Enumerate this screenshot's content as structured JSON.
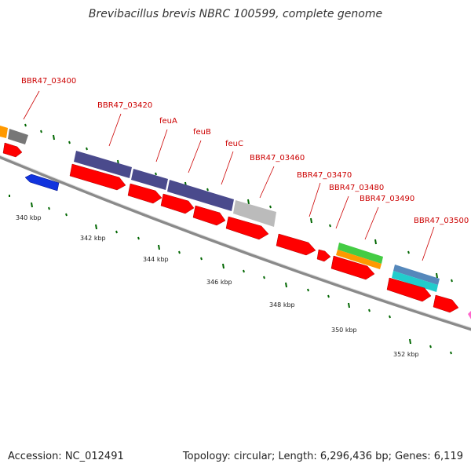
{
  "title": "Brevibacillus brevis NBRC 100599, complete genome",
  "footer": {
    "accession": "Accession: NC_012491",
    "summary": "Topology: circular; Length: 6,296,436 bp; Genes: 6,119"
  },
  "colors": {
    "backbone": "#999999",
    "label": "#cc0000",
    "tick": "#006600",
    "gene": "#ff0000",
    "cds_purple": "#4a4a8c",
    "grey": "#bbbbbb",
    "green": "#44cc44",
    "orange": "#ff9900",
    "teal": "#5588bb",
    "cyan": "#22cccc",
    "blue": "#1133dd",
    "pink": "#ff66cc"
  },
  "gene_labels": [
    "BBR47_03400",
    "BBR47_03420",
    "feuA",
    "feuB",
    "feuC",
    "BBR47_03460",
    "BBR47_03470",
    "BBR47_03480",
    "BBR47_03490",
    "BBR47_03500"
  ],
  "scale_labels": [
    "340 kbp",
    "342 kbp",
    "344 kbp",
    "346 kbp",
    "348 kbp",
    "350 kbp",
    "352 kbp"
  ]
}
